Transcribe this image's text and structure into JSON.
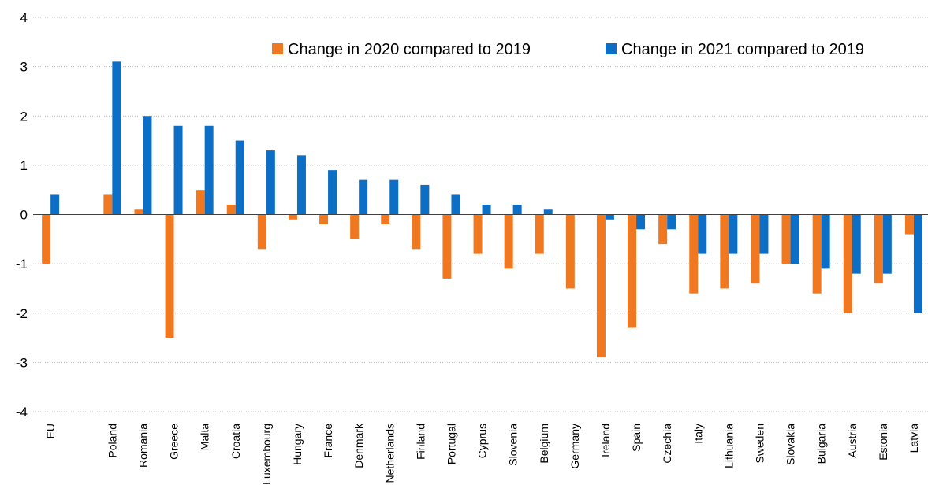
{
  "chart_data": {
    "type": "bar",
    "title": "",
    "xlabel": "",
    "ylabel": "",
    "ylim": [
      -4,
      4
    ],
    "yticks": [
      4,
      3,
      2,
      1,
      0,
      -1,
      -2,
      -3,
      -4
    ],
    "grid": true,
    "legend_position": "top-right",
    "categories": [
      "EU",
      "",
      "Poland",
      "Romania",
      "Greece",
      "Malta",
      "Croatia",
      "Luxembourg",
      "Hungary",
      "France",
      "Denmark",
      "Netherlands",
      "Finland",
      "Portugal",
      "Cyprus",
      "Slovenia",
      "Belgium",
      "Germany",
      "Ireland",
      "Spain",
      "Czechia",
      "Italy",
      "Lithuania",
      "Sweden",
      "Slovakia",
      "Bulgaria",
      "Austria",
      "Estonia",
      "Latvia"
    ],
    "series": [
      {
        "name": "Change in 2020 compared to 2019",
        "color": "#f07820",
        "values": [
          -1.0,
          null,
          0.4,
          0.1,
          -2.5,
          0.5,
          0.2,
          -0.7,
          -0.1,
          -0.2,
          -0.5,
          -0.2,
          -0.7,
          -1.3,
          -0.8,
          -1.1,
          -0.8,
          -1.5,
          -2.9,
          -2.3,
          -0.6,
          -1.6,
          -1.5,
          -1.4,
          -1.0,
          -1.6,
          -2.0,
          -1.4,
          -0.4
        ]
      },
      {
        "name": "Change in 2021 compared to 2019",
        "color": "#0d6ec6",
        "values": [
          0.4,
          null,
          3.1,
          2.0,
          1.8,
          1.8,
          1.5,
          1.3,
          1.2,
          0.9,
          0.7,
          0.7,
          0.6,
          0.4,
          0.2,
          0.2,
          0.1,
          0.0,
          -0.1,
          -0.3,
          -0.3,
          -0.8,
          -0.8,
          -0.8,
          -1.0,
          -1.1,
          -1.2,
          -1.2,
          -2.0
        ]
      }
    ]
  }
}
